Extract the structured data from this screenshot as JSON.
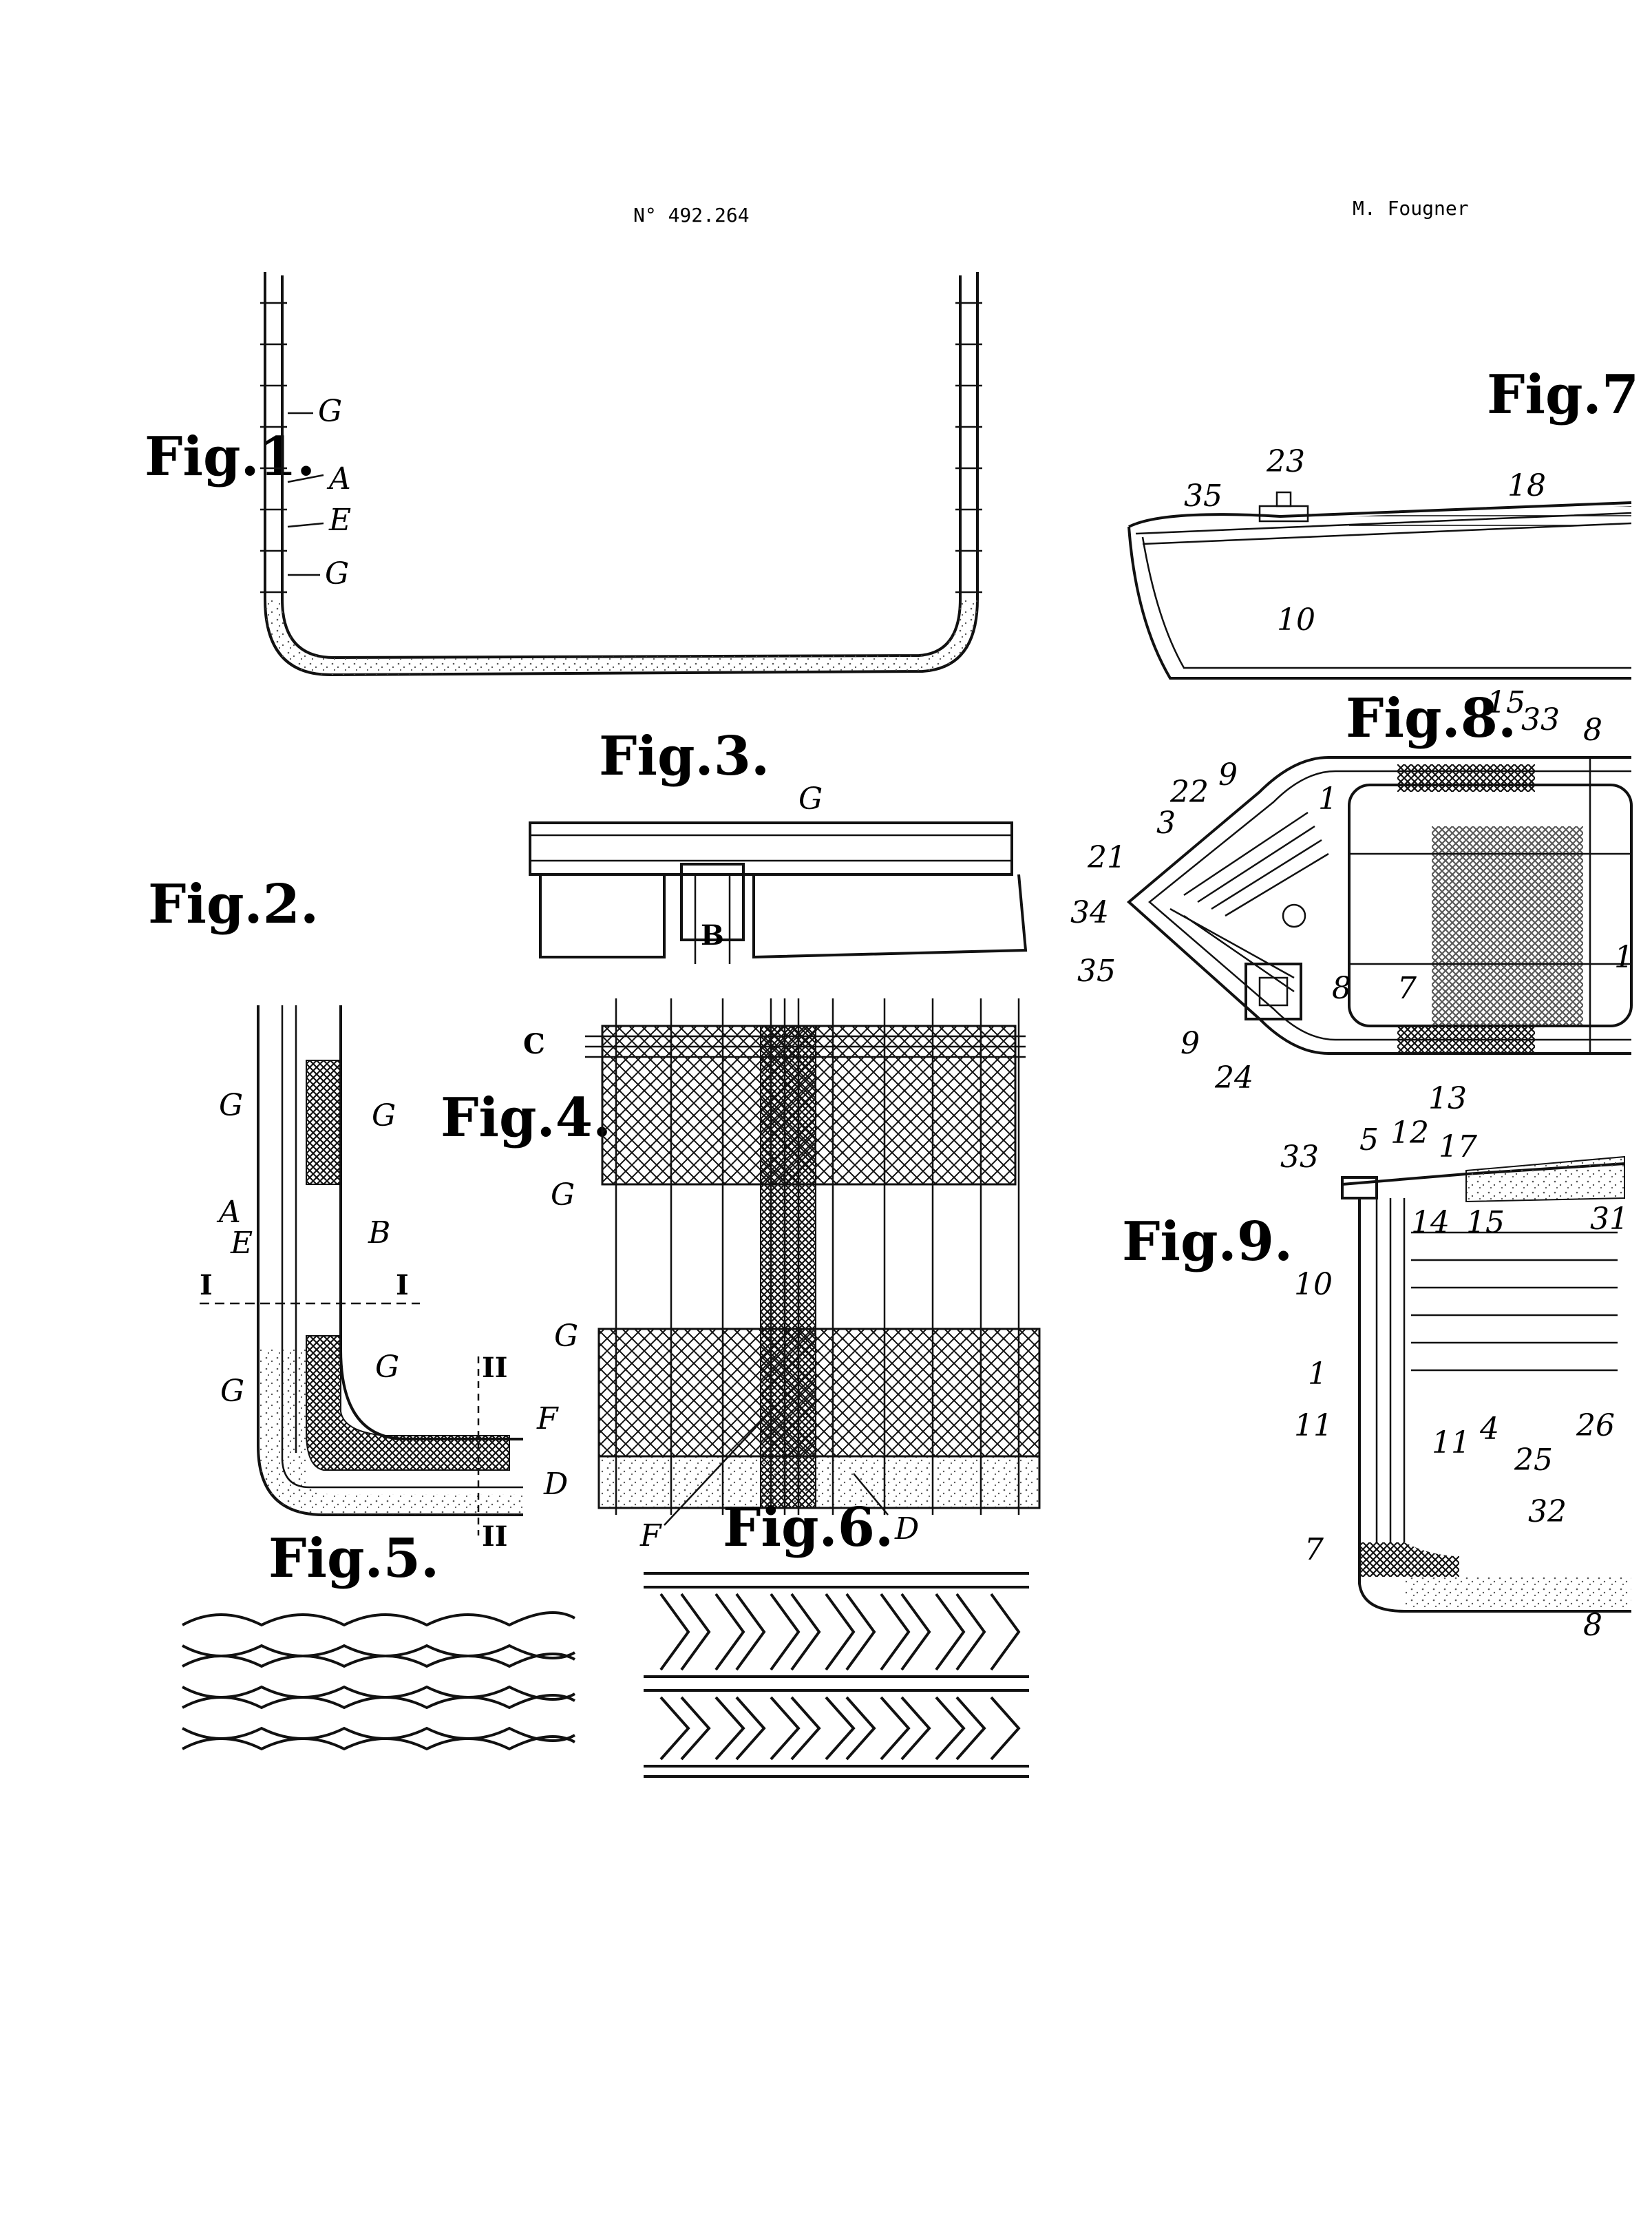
{
  "header": {
    "patent_number": "N° 492.264",
    "inventor": "M. Fougner"
  },
  "figures": {
    "fig1": "Fig.1.",
    "fig2": "Fig.2.",
    "fig3": "Fig.3.",
    "fig4": "Fig.4.",
    "fig5": "Fig.5.",
    "fig6": "Fig.6.",
    "fig7": "Fig.7",
    "fig8": "Fig.8.",
    "fig9": "Fig.9."
  },
  "labels": {
    "fig1": [
      "G",
      "A",
      "E",
      "G"
    ],
    "fig2": [
      "G",
      "G",
      "A",
      "E",
      "B",
      "I",
      "I",
      "G",
      "G",
      "F",
      "D",
      "II",
      "II"
    ],
    "fig3": [
      "G",
      "B"
    ],
    "fig4": [
      "C",
      "G",
      "G",
      "F",
      "D"
    ],
    "fig7": [
      "23",
      "35",
      "18",
      "10"
    ],
    "fig8": [
      "15",
      "33",
      "8",
      "9",
      "22",
      "3",
      "21",
      "34",
      "35",
      "1",
      "8",
      "7",
      "1",
      "9",
      "24"
    ],
    "fig9": [
      "13",
      "33",
      "5",
      "12",
      "17",
      "14",
      "15",
      "31",
      "10",
      "1",
      "11",
      "11",
      "4",
      "26",
      "25",
      "32",
      "7",
      "8"
    ]
  },
  "colors": {
    "ink": "#111111",
    "paper": "#ffffff",
    "stipple": "#555555"
  }
}
